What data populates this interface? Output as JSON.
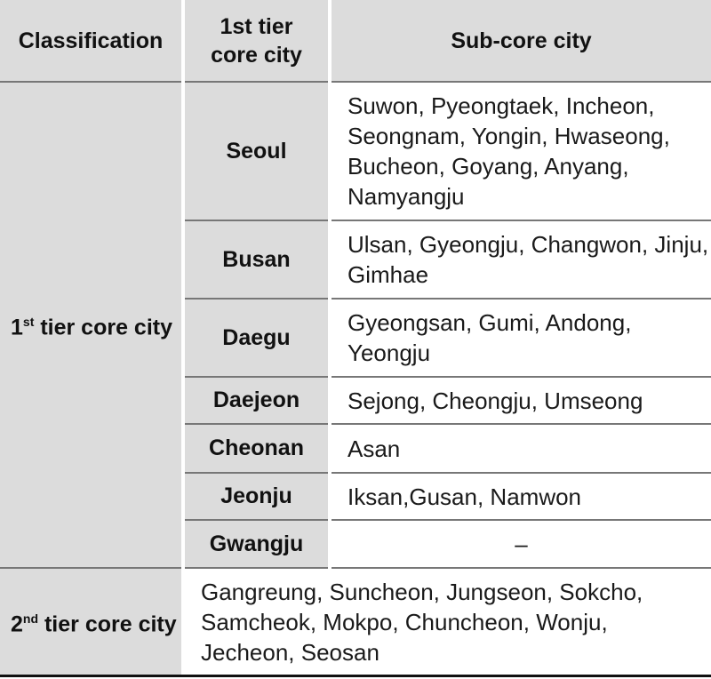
{
  "header": {
    "classification": "Classification",
    "core_city": "1st tier core city",
    "sub_core_city": "Sub-core city"
  },
  "groups": [
    {
      "label_prefix": "1",
      "label_sup": "st",
      "label_rest": "tier core city",
      "rows": [
        {
          "city": "Seoul",
          "sub": "Suwon, Pyeongtaek, Incheon, Seongnam, Yongin, Hwaseong, Bucheon, Goyang, Anyang, Namyangju"
        },
        {
          "city": "Busan",
          "sub": "Ulsan, Gyeongju, Changwon, Jinju, Gimhae"
        },
        {
          "city": "Daegu",
          "sub": "Gyeongsan, Gumi, Andong, Yeongju"
        },
        {
          "city": "Daejeon",
          "sub": "Sejong, Cheongju, Umseong"
        },
        {
          "city": "Cheonan",
          "sub": "Asan"
        },
        {
          "city": "Jeonju",
          "sub": "Iksan,Gusan, Namwon"
        },
        {
          "city": "Gwangju",
          "sub": "–"
        }
      ]
    },
    {
      "label_prefix": "2",
      "label_sup": "nd",
      "label_rest": "tier core city",
      "sub": "Gangreung, Suncheon, Jungseon, Sokcho, Samcheok, Mokpo, Chuncheon, Wonju, Jecheon, Seosan"
    }
  ]
}
